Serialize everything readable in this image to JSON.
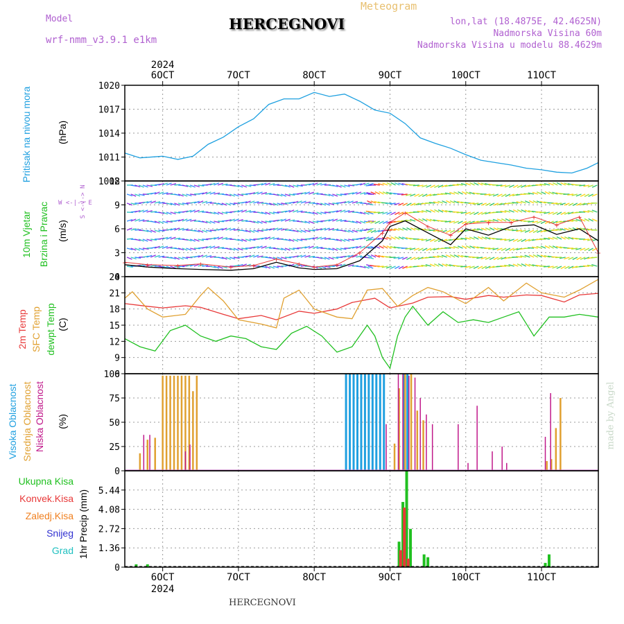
{
  "header": {
    "model_label": "Model",
    "model_name": "wrf-nmm_v3.9.1 e1km",
    "title": "HERCEGNOVI",
    "meteogram_label": "Meteogram",
    "coords": "lon,lat (18.4875E, 42.4625N)",
    "elevation": "Nadmorska Visina 60m",
    "model_elevation": "Nadmorska Visina u modelu 88.4629m",
    "bottom_title": "HERCEGNOVI",
    "watermark": "made by Angel"
  },
  "time_axis": {
    "year": "2024",
    "ticks": [
      "6OCT",
      "7OCT",
      "8OCT",
      "9OCT",
      "10OCT",
      "11OCT"
    ],
    "tick_day": [
      0,
      1,
      2,
      3,
      4,
      5
    ],
    "range_days": [
      -0.5,
      5.75
    ]
  },
  "colors": {
    "pressure": "#1ea0e0",
    "temp2m": "#e83838",
    "sfc": "#e0a030",
    "dew": "#20c020",
    "high_cloud": "#20a0e0",
    "mid_cloud": "#e0a030",
    "low_cloud": "#c0188a",
    "total_precip": "#20c020",
    "conv_precip": "#e83838",
    "frozen_precip": "#f08020",
    "snow": "#3030d0",
    "hail": "#20c0c0"
  },
  "labels": {
    "pressure_panel": "Pritisak na nivou mora",
    "pressure_unit": "(hPa)",
    "wind_panel_1": "10m Vjetar",
    "wind_panel_2": "Brzina i Pravac",
    "wind_unit": "(m/s)",
    "compass": "W <-|-> E",
    "compass_v": "S <-|-> N",
    "temp_1": "2m Temp",
    "temp_2": "SFC Temp",
    "temp_3": "dewpt Temp",
    "temp_unit": "(C)",
    "cloud_1": "Visoka Oblacnost",
    "cloud_2": "Srednja Oblacnost",
    "cloud_3": "Niska Oblacnost",
    "cloud_unit": "(%)",
    "precip_total": "Ukupna Kisa",
    "precip_conv": "Konvek.Kisa",
    "precip_frozen": "Zaledj.Kisa",
    "precip_snow": "Snijeg",
    "precip_hail": "Grad",
    "precip_unit": "1hr Precip (mm)"
  },
  "chart_data": [
    {
      "type": "line",
      "panel": "pressure",
      "ylabel": "(hPa)",
      "ylim": [
        1008,
        1020
      ],
      "yticks": [
        1008,
        1011,
        1014,
        1017,
        1020
      ],
      "ytick_labels": [
        "1008",
        "1011",
        "1014",
        "1017",
        "1020"
      ],
      "grid": true,
      "series": [
        {
          "name": "Pritisak na nivou mora",
          "x": [
            -0.5,
            -0.3,
            0.0,
            0.2,
            0.4,
            0.6,
            0.8,
            1.0,
            1.2,
            1.4,
            1.6,
            1.8,
            2.0,
            2.2,
            2.4,
            2.6,
            2.8,
            3.0,
            3.2,
            3.4,
            3.6,
            3.8,
            4.0,
            4.2,
            4.4,
            4.6,
            4.8,
            5.0,
            5.2,
            5.4,
            5.6,
            5.75
          ],
          "y": [
            1011.5,
            1010.9,
            1011.1,
            1010.7,
            1011.1,
            1012.6,
            1013.5,
            1014.8,
            1015.8,
            1017.6,
            1018.3,
            1018.3,
            1019.1,
            1018.6,
            1018.9,
            1018.0,
            1016.9,
            1016.5,
            1015.2,
            1013.4,
            1012.7,
            1012.1,
            1011.3,
            1010.6,
            1010.3,
            1010.0,
            1009.6,
            1009.4,
            1009.1,
            1009.0,
            1009.6,
            1010.3
          ]
        }
      ]
    },
    {
      "type": "line",
      "panel": "wind",
      "ylabel": "(m/s)",
      "ylim": [
        0,
        12
      ],
      "yticks": [
        0,
        3,
        6,
        9,
        12
      ],
      "ytick_labels": [
        "0",
        "3",
        "6",
        "9",
        "12"
      ],
      "grid": true,
      "series": [
        {
          "x": [
            -0.5,
            -0.2,
            0.2,
            0.5,
            0.9,
            1.2,
            1.5,
            1.8,
            2.0,
            2.3,
            2.6,
            2.9,
            3.0,
            3.2,
            3.5,
            3.8,
            4.0,
            4.3,
            4.6,
            4.9,
            5.2,
            5.5,
            5.75
          ],
          "y": [
            1.5,
            1.2,
            1.0,
            0.9,
            0.8,
            1.0,
            1.8,
            1.1,
            0.9,
            1.0,
            2.0,
            4.5,
            6.3,
            7.0,
            5.5,
            4.0,
            6.0,
            5.2,
            6.3,
            6.5,
            5.3,
            6.0,
            4.5
          ]
        },
        {
          "x": [
            -0.5,
            -0.2,
            0.2,
            0.5,
            0.9,
            1.2,
            1.5,
            1.8,
            2.0,
            2.3,
            2.6,
            2.9,
            3.0,
            3.2,
            3.5,
            3.8,
            4.0,
            4.3,
            4.6,
            4.9,
            5.2,
            5.5,
            5.75
          ],
          "y": [
            1.8,
            1.5,
            1.4,
            1.6,
            1.2,
            1.4,
            2.2,
            1.6,
            1.2,
            1.5,
            3.0,
            5.5,
            6.8,
            8.0,
            6.3,
            5.2,
            6.6,
            6.8,
            6.8,
            7.5,
            6.5,
            7.5,
            3.0
          ]
        }
      ]
    },
    {
      "type": "line",
      "panel": "temperature",
      "ylabel": "(C)",
      "ylim": [
        6,
        24
      ],
      "yticks": [
        6,
        9,
        12,
        15,
        18,
        21,
        24
      ],
      "ytick_labels": [
        "6",
        "9",
        "12",
        "15",
        "18",
        "21",
        "24"
      ],
      "grid": true,
      "series": [
        {
          "name": "2m Temp",
          "x": [
            -0.5,
            -0.2,
            0.0,
            0.3,
            0.5,
            0.8,
            1.0,
            1.3,
            1.5,
            1.8,
            2.0,
            2.3,
            2.5,
            2.8,
            3.0,
            3.3,
            3.5,
            3.8,
            4.0,
            4.3,
            4.5,
            4.8,
            5.0,
            5.3,
            5.5,
            5.75
          ],
          "y": [
            19.0,
            18.5,
            18.2,
            18.6,
            18.3,
            17.0,
            16.2,
            16.8,
            16.0,
            17.6,
            17.2,
            18.0,
            19.2,
            20.0,
            18.2,
            19.1,
            20.2,
            20.3,
            19.8,
            20.5,
            20.2,
            20.6,
            20.5,
            19.3,
            20.6,
            20.9
          ]
        },
        {
          "name": "SFC Temp",
          "x": [
            -0.5,
            -0.4,
            -0.2,
            0.0,
            0.3,
            0.5,
            0.6,
            0.8,
            1.0,
            1.3,
            1.5,
            1.6,
            1.8,
            2.0,
            2.3,
            2.5,
            2.7,
            2.9,
            3.1,
            3.3,
            3.5,
            3.7,
            4.0,
            4.3,
            4.5,
            4.8,
            5.0,
            5.3,
            5.5,
            5.75
          ],
          "y": [
            20.0,
            21.2,
            18.0,
            16.5,
            17.0,
            20.5,
            22.0,
            19.5,
            16.0,
            15.2,
            14.5,
            20.0,
            21.5,
            18.0,
            16.5,
            16.2,
            21.5,
            21.8,
            18.5,
            20.5,
            22.0,
            21.2,
            19.0,
            22.0,
            19.5,
            22.8,
            21.0,
            20.2,
            21.5,
            23.5
          ]
        },
        {
          "name": "dewpt Temp",
          "x": [
            -0.5,
            -0.3,
            -0.1,
            0.1,
            0.3,
            0.5,
            0.7,
            0.9,
            1.1,
            1.3,
            1.5,
            1.7,
            1.9,
            2.1,
            2.3,
            2.5,
            2.7,
            2.8,
            2.9,
            3.0,
            3.1,
            3.2,
            3.3,
            3.5,
            3.7,
            3.9,
            4.1,
            4.3,
            4.5,
            4.7,
            4.9,
            5.1,
            5.3,
            5.5,
            5.75
          ],
          "y": [
            12.5,
            11.0,
            10.2,
            14.0,
            15.0,
            13.0,
            12.0,
            13.0,
            12.5,
            11.0,
            10.5,
            13.5,
            14.8,
            13.0,
            10.0,
            11.0,
            15.0,
            13.0,
            9.0,
            7.0,
            13.0,
            16.5,
            18.5,
            15.0,
            17.5,
            15.5,
            16.0,
            15.5,
            16.5,
            17.5,
            13.0,
            16.5,
            16.5,
            17.0,
            16.5
          ]
        }
      ]
    },
    {
      "type": "bar",
      "panel": "clouds",
      "ylabel": "(%)",
      "ylim": [
        0,
        100
      ],
      "yticks": [
        0,
        25,
        50,
        75,
        100
      ],
      "ytick_labels": [
        "0",
        "25",
        "50",
        "75",
        "100"
      ],
      "grid": true,
      "series": [
        {
          "name": "Visoka Oblacnost",
          "x": [
            2.42,
            2.47,
            2.52,
            2.57,
            2.62,
            2.67,
            2.72,
            2.77,
            2.82,
            2.87,
            2.92,
            3.18,
            3.23
          ],
          "values": [
            100,
            100,
            100,
            100,
            100,
            100,
            100,
            100,
            100,
            100,
            100,
            100,
            100
          ]
        },
        {
          "name": "Srednja Oblacnost",
          "x": [
            -0.3,
            -0.2,
            -0.1,
            0.0,
            0.05,
            0.1,
            0.15,
            0.2,
            0.25,
            0.3,
            0.35,
            0.4,
            0.45,
            3.06,
            3.12,
            3.2,
            3.28,
            3.36,
            3.44,
            5.07,
            5.13,
            5.19,
            5.25
          ],
          "values": [
            18,
            32,
            34,
            98,
            98,
            98,
            98,
            98,
            98,
            98,
            98,
            82,
            98,
            28,
            85,
            100,
            100,
            62,
            52,
            10,
            12,
            44,
            75
          ]
        },
        {
          "name": "Niska Oblacnost",
          "x": [
            -0.25,
            -0.17,
            0.3,
            0.36,
            2.95,
            3.11,
            3.17,
            3.25,
            3.33,
            3.4,
            3.48,
            3.56,
            3.9,
            4.03,
            4.15,
            4.35,
            4.48,
            4.54,
            5.05,
            5.12
          ],
          "values": [
            37,
            37,
            20,
            27,
            48,
            100,
            100,
            98,
            96,
            75,
            58,
            48,
            48,
            8,
            67,
            20,
            25,
            8,
            35,
            80
          ]
        }
      ]
    },
    {
      "type": "bar",
      "panel": "precipitation",
      "ylabel": "1hr Precip (mm)",
      "ylim": [
        0,
        6.8
      ],
      "yticks": [
        0,
        1.36,
        2.72,
        4.08,
        5.44
      ],
      "ytick_labels": [
        "0",
        "1.36",
        "2.72",
        "4.08",
        "5.44"
      ],
      "grid": true,
      "series": [
        {
          "name": "Ukupna Kisa",
          "x": [
            -0.35,
            -0.2,
            3.12,
            3.17,
            3.22,
            3.27,
            3.45,
            3.5,
            5.05,
            5.1
          ],
          "values": [
            0.2,
            0.2,
            1.8,
            4.6,
            6.8,
            2.7,
            0.9,
            0.7,
            0.3,
            0.9
          ]
        },
        {
          "name": "Konvek.Kisa",
          "x": [
            3.14,
            3.19,
            3.24
          ],
          "values": [
            1.2,
            4.2,
            0.6
          ]
        }
      ]
    }
  ]
}
